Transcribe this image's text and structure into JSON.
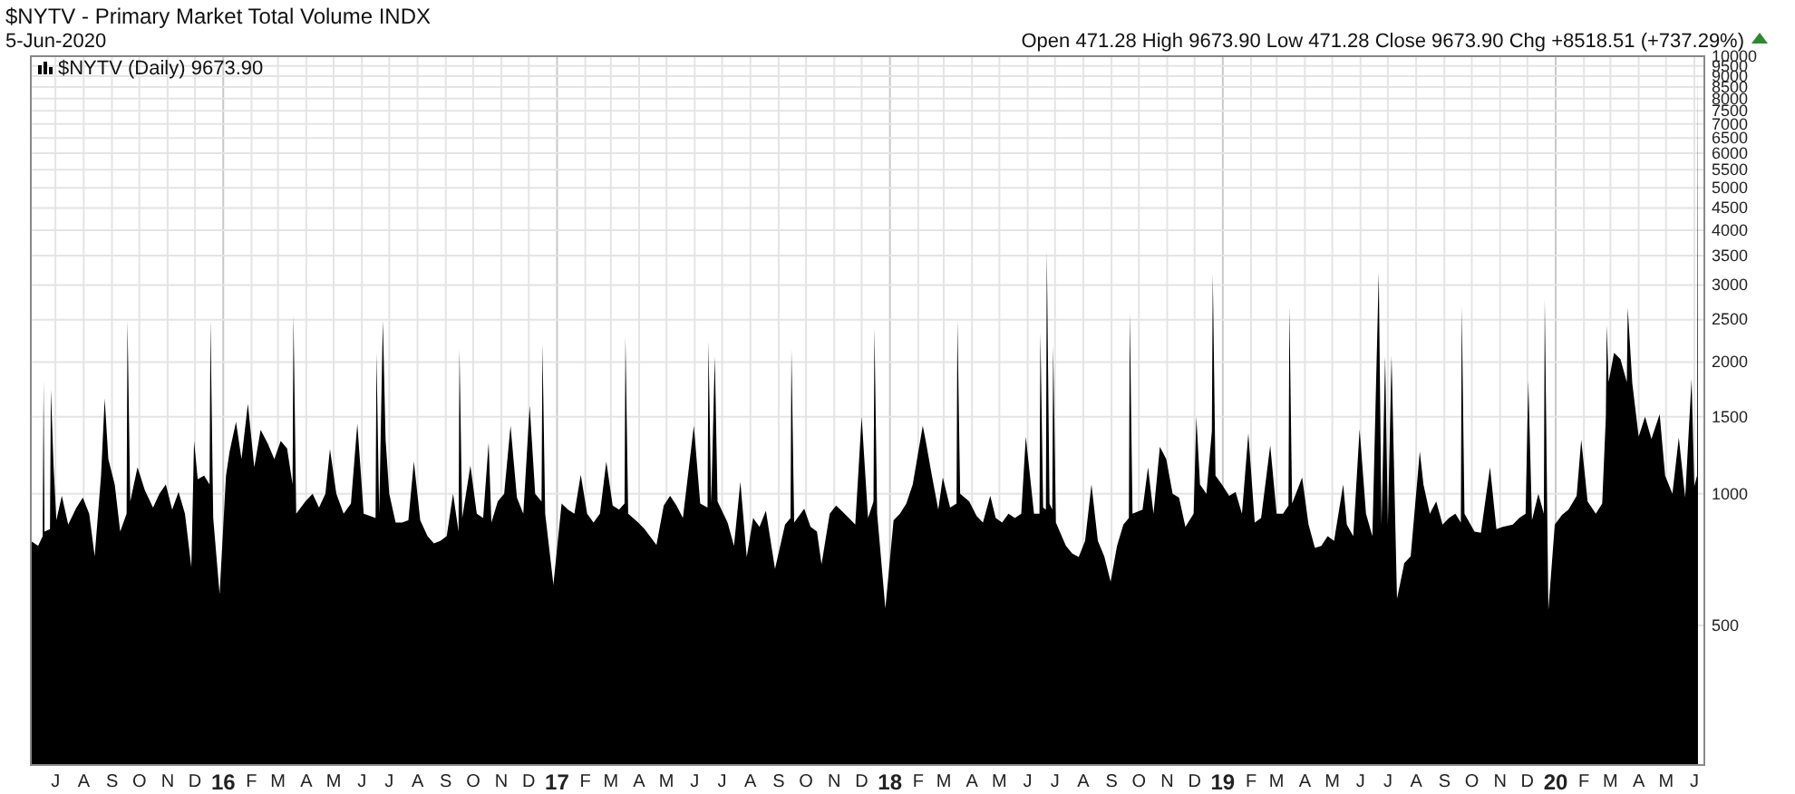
{
  "chart_data": {
    "type": "area",
    "title": "$NYTV - Primary Market Total Volume INDX",
    "subtitle": "5-Jun-2020",
    "annotations": [
      "Open 471.28 High 9673.90 Low 471.28 Close 9673.90 Chg +8518.51 (+737.29%)"
    ],
    "log": true,
    "grid": true,
    "legend": "top left",
    "xlim": [
      "2015-06-04",
      "2020-06-12"
    ],
    "xticks": [
      {
        "value": "2015-07-01",
        "label": "J"
      },
      {
        "value": "2015-08-01",
        "label": "A"
      },
      {
        "value": "2015-09-01",
        "label": "S"
      },
      {
        "value": "2015-10-01",
        "label": "O"
      },
      {
        "value": "2015-11-01",
        "label": "N"
      },
      {
        "value": "2015-12-01",
        "label": "D"
      },
      {
        "value": "2016-01-01",
        "label": "16"
      },
      {
        "value": "2016-02-01",
        "label": "F"
      },
      {
        "value": "2016-03-01",
        "label": "M"
      },
      {
        "value": "2016-04-01",
        "label": "A"
      },
      {
        "value": "2016-05-01",
        "label": "M"
      },
      {
        "value": "2016-06-01",
        "label": "J"
      },
      {
        "value": "2016-07-01",
        "label": "J"
      },
      {
        "value": "2016-08-01",
        "label": "A"
      },
      {
        "value": "2016-09-01",
        "label": "S"
      },
      {
        "value": "2016-10-01",
        "label": "O"
      },
      {
        "value": "2016-11-01",
        "label": "N"
      },
      {
        "value": "2016-12-01",
        "label": "D"
      },
      {
        "value": "2017-01-01",
        "label": "17"
      },
      {
        "value": "2017-02-01",
        "label": "F"
      },
      {
        "value": "2017-03-01",
        "label": "M"
      },
      {
        "value": "2017-04-01",
        "label": "A"
      },
      {
        "value": "2017-05-01",
        "label": "M"
      },
      {
        "value": "2017-06-01",
        "label": "J"
      },
      {
        "value": "2017-07-01",
        "label": "J"
      },
      {
        "value": "2017-08-01",
        "label": "A"
      },
      {
        "value": "2017-09-01",
        "label": "S"
      },
      {
        "value": "2017-10-01",
        "label": "O"
      },
      {
        "value": "2017-11-01",
        "label": "N"
      },
      {
        "value": "2017-12-01",
        "label": "D"
      },
      {
        "value": "2018-01-01",
        "label": "18"
      },
      {
        "value": "2018-02-01",
        "label": "F"
      },
      {
        "value": "2018-03-01",
        "label": "M"
      },
      {
        "value": "2018-04-01",
        "label": "A"
      },
      {
        "value": "2018-05-01",
        "label": "M"
      },
      {
        "value": "2018-06-01",
        "label": "J"
      },
      {
        "value": "2018-07-01",
        "label": "J"
      },
      {
        "value": "2018-08-01",
        "label": "A"
      },
      {
        "value": "2018-09-01",
        "label": "S"
      },
      {
        "value": "2018-10-01",
        "label": "O"
      },
      {
        "value": "2018-11-01",
        "label": "N"
      },
      {
        "value": "2018-12-01",
        "label": "D"
      },
      {
        "value": "2019-01-01",
        "label": "19"
      },
      {
        "value": "2019-02-01",
        "label": "F"
      },
      {
        "value": "2019-03-01",
        "label": "M"
      },
      {
        "value": "2019-04-01",
        "label": "A"
      },
      {
        "value": "2019-05-01",
        "label": "M"
      },
      {
        "value": "2019-06-01",
        "label": "J"
      },
      {
        "value": "2019-07-01",
        "label": "J"
      },
      {
        "value": "2019-08-01",
        "label": "A"
      },
      {
        "value": "2019-09-01",
        "label": "S"
      },
      {
        "value": "2019-10-01",
        "label": "O"
      },
      {
        "value": "2019-11-01",
        "label": "N"
      },
      {
        "value": "2019-12-01",
        "label": "D"
      },
      {
        "value": "2020-01-01",
        "label": "20"
      },
      {
        "value": "2020-02-01",
        "label": "F"
      },
      {
        "value": "2020-03-01",
        "label": "M"
      },
      {
        "value": "2020-04-01",
        "label": "A"
      },
      {
        "value": "2020-05-01",
        "label": "M"
      },
      {
        "value": "2020-06-01",
        "label": "J"
      }
    ],
    "ylim": [
      240,
      10000
    ],
    "yticks": [
      500,
      1000,
      1500,
      2000,
      2500,
      3000,
      3500,
      4000,
      4500,
      5000,
      5500,
      6000,
      6500,
      7000,
      7500,
      8000,
      8500,
      9000,
      9500,
      10000
    ],
    "series": [
      {
        "name": "$NYTV (Daily) 9673.90",
        "color": "#000000",
        "x": [
          "2015-06-04",
          "2015-06-12",
          "2015-06-17",
          "2015-06-18",
          "2015-06-19",
          "2015-06-25",
          "2015-06-26",
          "2015-06-29",
          "2015-07-02",
          "2015-07-08",
          "2015-07-15",
          "2015-07-24",
          "2015-07-31",
          "2015-08-07",
          "2015-08-13",
          "2015-08-20",
          "2015-08-24",
          "2015-08-28",
          "2015-09-04",
          "2015-09-10",
          "2015-09-17",
          "2015-09-18",
          "2015-09-21",
          "2015-09-29",
          "2015-10-07",
          "2015-10-16",
          "2015-10-23",
          "2015-10-30",
          "2015-11-06",
          "2015-11-13",
          "2015-11-20",
          "2015-11-27",
          "2015-11-30",
          "2015-12-04",
          "2015-12-11",
          "2015-12-17",
          "2015-12-18",
          "2015-12-21",
          "2015-12-28",
          "2016-01-04",
          "2016-01-08",
          "2016-01-15",
          "2016-01-21",
          "2016-01-28",
          "2016-02-04",
          "2016-02-11",
          "2016-02-19",
          "2016-02-26",
          "2016-03-04",
          "2016-03-11",
          "2016-03-17",
          "2016-03-18",
          "2016-03-21",
          "2016-03-31",
          "2016-04-08",
          "2016-04-15",
          "2016-04-22",
          "2016-04-27",
          "2016-05-04",
          "2016-05-12",
          "2016-05-20",
          "2016-05-27",
          "2016-06-03",
          "2016-06-10",
          "2016-06-16",
          "2016-06-17",
          "2016-06-20",
          "2016-06-24",
          "2016-06-27",
          "2016-07-01",
          "2016-07-08",
          "2016-07-15",
          "2016-07-22",
          "2016-07-28",
          "2016-08-04",
          "2016-08-12",
          "2016-08-19",
          "2016-08-26",
          "2016-09-02",
          "2016-09-09",
          "2016-09-15",
          "2016-09-16",
          "2016-09-19",
          "2016-09-28",
          "2016-10-05",
          "2016-10-12",
          "2016-10-18",
          "2016-10-21",
          "2016-10-28",
          "2016-11-04",
          "2016-11-11",
          "2016-11-18",
          "2016-11-25",
          "2016-12-02",
          "2016-12-08",
          "2016-12-15",
          "2016-12-16",
          "2016-12-19",
          "2016-12-28",
          "2017-01-06",
          "2017-01-13",
          "2017-01-20",
          "2017-01-27",
          "2017-02-03",
          "2017-02-10",
          "2017-02-17",
          "2017-02-24",
          "2017-03-03",
          "2017-03-10",
          "2017-03-16",
          "2017-03-17",
          "2017-03-20",
          "2017-03-31",
          "2017-04-07",
          "2017-04-20",
          "2017-04-28",
          "2017-05-05",
          "2017-05-12",
          "2017-05-19",
          "2017-05-31",
          "2017-06-07",
          "2017-06-15",
          "2017-06-16",
          "2017-06-19",
          "2017-06-23",
          "2017-06-26",
          "2017-07-07",
          "2017-07-14",
          "2017-07-21",
          "2017-07-28",
          "2017-08-04",
          "2017-08-11",
          "2017-08-18",
          "2017-08-28",
          "2017-09-08",
          "2017-09-14",
          "2017-09-15",
          "2017-09-18",
          "2017-09-29",
          "2017-10-06",
          "2017-10-13",
          "2017-10-18",
          "2017-10-27",
          "2017-11-03",
          "2017-11-10",
          "2017-11-17",
          "2017-11-24",
          "2017-12-01",
          "2017-12-08",
          "2017-12-14",
          "2017-12-15",
          "2017-12-18",
          "2017-12-27",
          "2018-01-05",
          "2018-01-12",
          "2018-01-19",
          "2018-01-26",
          "2018-02-06",
          "2018-02-09",
          "2018-02-16",
          "2018-02-23",
          "2018-02-28",
          "2018-03-08",
          "2018-03-15",
          "2018-03-16",
          "2018-03-19",
          "2018-03-29",
          "2018-04-06",
          "2018-04-13",
          "2018-04-21",
          "2018-04-27",
          "2018-05-04",
          "2018-05-11",
          "2018-05-18",
          "2018-05-25",
          "2018-05-30",
          "2018-06-08",
          "2018-06-14",
          "2018-06-15",
          "2018-06-18",
          "2018-06-21",
          "2018-06-22",
          "2018-06-25",
          "2018-06-28",
          "2018-06-29",
          "2018-07-02",
          "2018-07-13",
          "2018-07-20",
          "2018-07-27",
          "2018-08-03",
          "2018-08-10",
          "2018-08-17",
          "2018-08-24",
          "2018-08-31",
          "2018-09-07",
          "2018-09-14",
          "2018-09-20",
          "2018-09-21",
          "2018-09-24",
          "2018-10-05",
          "2018-10-11",
          "2018-10-17",
          "2018-10-24",
          "2018-10-31",
          "2018-11-07",
          "2018-11-14",
          "2018-11-21",
          "2018-11-30",
          "2018-12-03",
          "2018-12-07",
          "2018-12-14",
          "2018-12-20",
          "2018-12-21",
          "2018-12-24",
          "2018-12-31",
          "2019-01-08",
          "2019-01-15",
          "2019-01-22",
          "2019-01-29",
          "2019-02-05",
          "2019-02-12",
          "2019-02-22",
          "2019-03-01",
          "2019-03-08",
          "2019-03-14",
          "2019-03-15",
          "2019-03-18",
          "2019-03-29",
          "2019-04-05",
          "2019-04-12",
          "2019-04-19",
          "2019-04-26",
          "2019-05-03",
          "2019-05-13",
          "2019-05-17",
          "2019-05-24",
          "2019-05-31",
          "2019-06-07",
          "2019-06-14",
          "2019-06-21",
          "2019-06-24",
          "2019-06-28",
          "2019-07-01",
          "2019-07-05",
          "2019-07-11",
          "2019-07-19",
          "2019-07-26",
          "2019-08-05",
          "2019-08-09",
          "2019-08-16",
          "2019-08-23",
          "2019-08-30",
          "2019-09-06",
          "2019-09-13",
          "2019-09-19",
          "2019-09-20",
          "2019-09-23",
          "2019-10-04",
          "2019-10-11",
          "2019-10-21",
          "2019-10-28",
          "2019-11-04",
          "2019-11-15",
          "2019-11-22",
          "2019-11-29",
          "2019-12-02",
          "2019-12-06",
          "2019-12-13",
          "2019-12-19",
          "2019-12-20",
          "2019-12-24",
          "2019-12-31",
          "2020-01-08",
          "2020-01-15",
          "2020-01-24",
          "2020-01-29",
          "2020-02-05",
          "2020-02-14",
          "2020-02-21",
          "2020-02-25",
          "2020-02-26",
          "2020-02-28",
          "2020-03-05",
          "2020-03-12",
          "2020-03-19",
          "2020-03-20",
          "2020-03-25",
          "2020-04-01",
          "2020-04-08",
          "2020-04-15",
          "2020-04-24",
          "2020-04-30",
          "2020-05-08",
          "2020-05-15",
          "2020-05-22",
          "2020-05-29",
          "2020-06-01",
          "2020-06-04",
          "2020-06-05"
        ],
        "values": [
          780,
          760,
          800,
          1820,
          820,
          830,
          1730,
          1150,
          870,
          990,
          850,
          930,
          980,
          900,
          720,
          1100,
          1650,
          1200,
          1050,
          820,
          900,
          2490,
          960,
          1150,
          1020,
          930,
          1000,
          1050,
          920,
          1010,
          900,
          680,
          1320,
          1080,
          1100,
          1050,
          2490,
          880,
          590,
          1100,
          1250,
          1460,
          1200,
          1605,
          1150,
          1400,
          1300,
          1200,
          1320,
          1270,
          1050,
          2560,
          900,
          960,
          1000,
          930,
          1000,
          1265,
          1000,
          900,
          950,
          1445,
          900,
          890,
          880,
          2100,
          900,
          2490,
          1330,
          1000,
          860,
          860,
          870,
          1185,
          870,
          800,
          770,
          780,
          800,
          1000,
          820,
          2140,
          880,
          1160,
          900,
          880,
          1310,
          860,
          960,
          1000,
          1430,
          980,
          900,
          1590,
          1000,
          960,
          2200,
          900,
          620,
          950,
          920,
          900,
          1105,
          900,
          860,
          900,
          1185,
          940,
          920,
          950,
          2280,
          900,
          860,
          830,
          764,
          940,
          990,
          940,
          880,
          1430,
          950,
          930,
          2230,
          950,
          2060,
          960,
          860,
          760,
          1065,
          717,
          880,
          840,
          915,
          673,
          850,
          880,
          2140,
          860,
          925,
          840,
          820,
          690,
          900,
          940,
          910,
          880,
          850,
          1500,
          880,
          960,
          2395,
          900,
          547,
          870,
          900,
          950,
          1050,
          1430,
          1330,
          1100,
          920,
          1090,
          930,
          950,
          2490,
          1000,
          960,
          890,
          860,
          990,
          880,
          860,
          900,
          880,
          900,
          1350,
          900,
          900,
          2340,
          930,
          920,
          3600,
          950,
          920,
          2180,
          860,
          760,
          730,
          717,
          780,
          1050,
          780,
          720,
          630,
          760,
          850,
          880,
          2600,
          900,
          920,
          1150,
          900,
          1280,
          1200,
          1000,
          980,
          840,
          900,
          1500,
          1050,
          1000,
          1390,
          3190,
          1100,
          1050,
          990,
          1010,
          900,
          1375,
          860,
          880,
          1290,
          900,
          900,
          940,
          2680,
          950,
          1090,
          850,
          752,
          760,
          800,
          780,
          1050,
          850,
          800,
          1405,
          900,
          800,
          3200,
          850,
          2060,
          850,
          2070,
          575,
          694,
          720,
          1250,
          1050,
          900,
          960,
          850,
          880,
          900,
          860,
          2680,
          900,
          820,
          815,
          1150,
          830,
          840,
          850,
          880,
          900,
          1810,
          870,
          1000,
          900,
          2790,
          543,
          850,
          895,
          920,
          990,
          1330,
          960,
          900,
          950,
          1500,
          2430,
          1800,
          2100,
          2030,
          1800,
          2660,
          1790,
          1350,
          1500,
          1335,
          1520,
          1100,
          1000,
          1345,
          980,
          1830,
          1040,
          1100,
          9673.9
        ]
      }
    ]
  }
}
